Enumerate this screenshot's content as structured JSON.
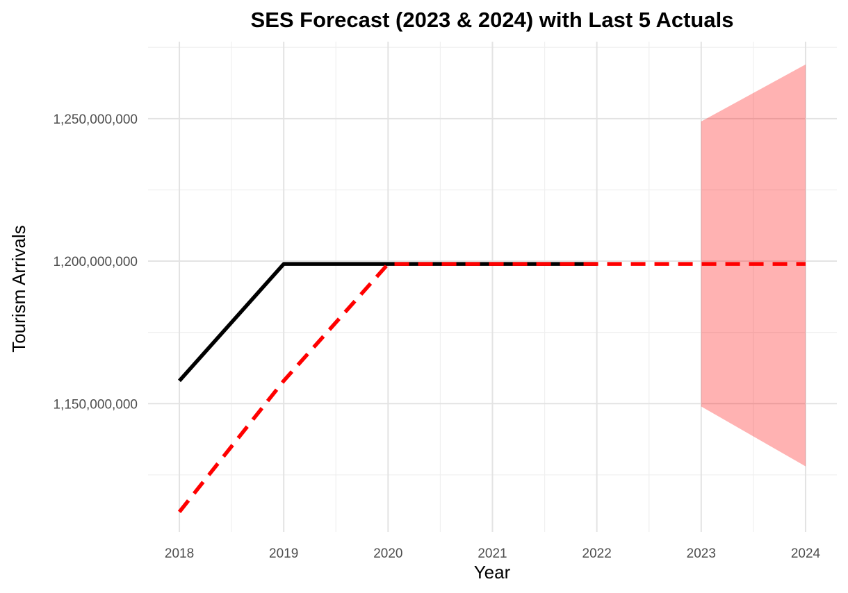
{
  "chart_data": {
    "type": "line",
    "title": "SES Forecast (2023 & 2024) with Last 5 Actuals",
    "xlabel": "Year",
    "ylabel": "Tourism Arrivals",
    "x_ticks": [
      2018,
      2019,
      2020,
      2021,
      2022,
      2023,
      2024
    ],
    "y_ticks": [
      1150000000,
      1200000000,
      1250000000
    ],
    "y_tick_labels": [
      "1,150,000,000",
      "1,200,000,000",
      "1,250,000,000"
    ],
    "xlim": [
      2017.7,
      2024.3
    ],
    "ylim": [
      1105000000,
      1277000000
    ],
    "grid": true,
    "legend": "none",
    "series": [
      {
        "style": "solid",
        "color": "#000000",
        "x": [
          2018,
          2019,
          2020,
          2021,
          2022
        ],
        "y": [
          1158000000,
          1199000000,
          1199000000,
          1199000000,
          1199000000
        ]
      },
      {
        "style": "dashed",
        "color": "#ff0000",
        "x": [
          2018,
          2019,
          2020,
          2021,
          2022,
          2023,
          2024
        ],
        "y": [
          1112000000,
          1158000000,
          1199000000,
          1199000000,
          1199000000,
          1199000000,
          1199000000
        ]
      }
    ],
    "interval": {
      "color": "#ff0000",
      "opacity": 0.3,
      "x": [
        2023,
        2024
      ],
      "lower": [
        1149000000,
        1128000000
      ],
      "upper": [
        1249000000,
        1269000000
      ]
    }
  }
}
